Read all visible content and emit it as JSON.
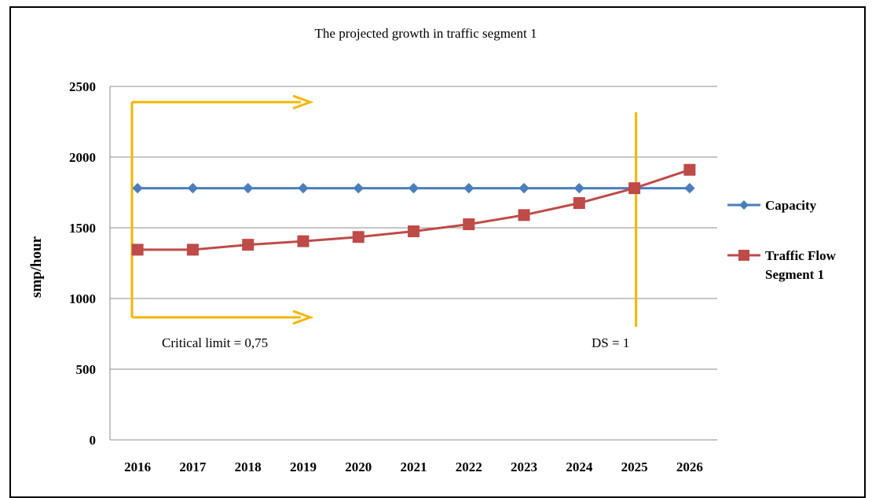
{
  "chart_data": {
    "type": "line",
    "title": "The projected growth in traffic segment 1",
    "xlabel": "",
    "ylabel": "smp/hour",
    "categories": [
      "2016",
      "2017",
      "2018",
      "2019",
      "2020",
      "2021",
      "2022",
      "2023",
      "2024",
      "2025",
      "2026"
    ],
    "ylim": [
      0,
      2500
    ],
    "yticks": [
      0,
      500,
      1000,
      1500,
      2000,
      2500
    ],
    "grid": true,
    "legend_position": "right",
    "series": [
      {
        "name": "Capacity",
        "legend_lines": [
          "Capacity"
        ],
        "color": "#4a7ebb",
        "marker": "diamond",
        "values": [
          1780,
          1780,
          1780,
          1780,
          1780,
          1780,
          1780,
          1780,
          1780,
          1780,
          1780
        ]
      },
      {
        "name": "Traffic Flow Segment 1",
        "legend_lines": [
          "Traffic Flow",
          "Segment 1"
        ],
        "color": "#be4b48",
        "marker": "square",
        "values": [
          1345,
          1345,
          1380,
          1405,
          1435,
          1475,
          1525,
          1590,
          1675,
          1780,
          1910
        ]
      }
    ],
    "annotations": {
      "critical_limit": {
        "label": "Critical limit = 0,75",
        "color": "#f2b700"
      },
      "ds": {
        "label": "DS = 1",
        "color": "#f2b700"
      }
    }
  }
}
